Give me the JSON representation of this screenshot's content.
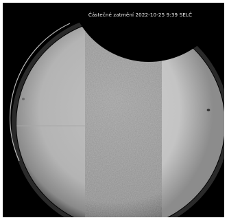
{
  "photo": {
    "caption": "Částečné zatmění 2022-10-25 9:39 SELČ",
    "background_color": "#000000",
    "sun_color_left": "#bdbdbd",
    "sun_color_center": "#8f8f8f",
    "sun_color_right": "#cfcfcf",
    "moon_color": "#000000"
  }
}
